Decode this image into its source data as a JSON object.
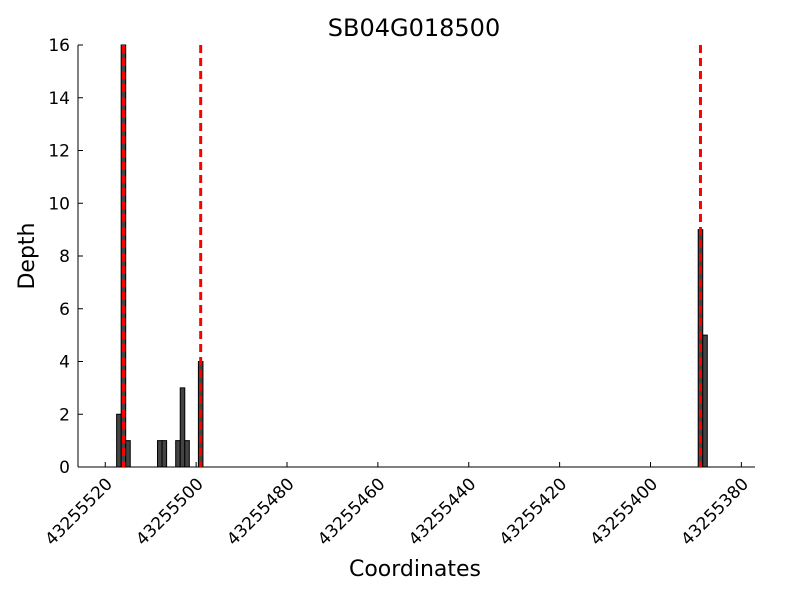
{
  "chart_data": {
    "type": "bar",
    "title": "SB04G018500",
    "x_label": "Coordinates",
    "y_label": "Depth",
    "x": [
      43255517,
      43255516,
      43255515,
      43255508,
      43255507,
      43255504,
      43255503,
      43255502,
      43255499,
      43255389,
      43255388
    ],
    "values": [
      2,
      16,
      1,
      1,
      1,
      1,
      3,
      1,
      4,
      9,
      5
    ],
    "color": "#444444",
    "vlines": [
      43255516,
      43255499,
      43255389
    ],
    "vline_color": "#ff0000",
    "xlim": [
      43255526,
      43255377
    ],
    "xticks": [
      43255520,
      43255500,
      43255480,
      43255460,
      43255440,
      43255420,
      43255400,
      43255380
    ],
    "ylim": [
      0,
      16
    ],
    "yticks": [
      0,
      2,
      4,
      6,
      8,
      10,
      12,
      14,
      16
    ]
  }
}
